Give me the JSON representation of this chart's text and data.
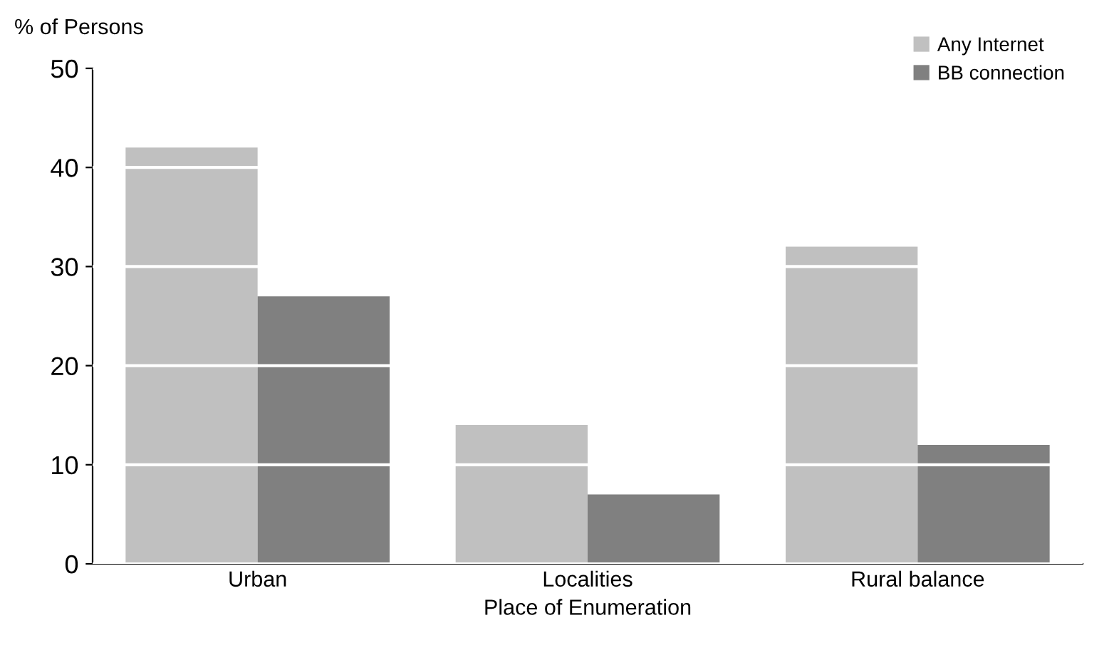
{
  "chart_data": {
    "type": "bar",
    "ylabel": "% of Persons",
    "xlabel": "Place of Enumeration",
    "categories": [
      "Urban",
      "Localities",
      "Rural balance"
    ],
    "series": [
      {
        "name": "Any Internet",
        "color": "#c0c0c0",
        "values": [
          42,
          14,
          32
        ]
      },
      {
        "name": "BB connection",
        "color": "#808080",
        "values": [
          27,
          7,
          12
        ]
      }
    ],
    "ylim": [
      0,
      50
    ],
    "yticks": [
      0,
      10,
      20,
      30,
      40,
      50
    ],
    "grid": "y",
    "legend": "top right"
  }
}
